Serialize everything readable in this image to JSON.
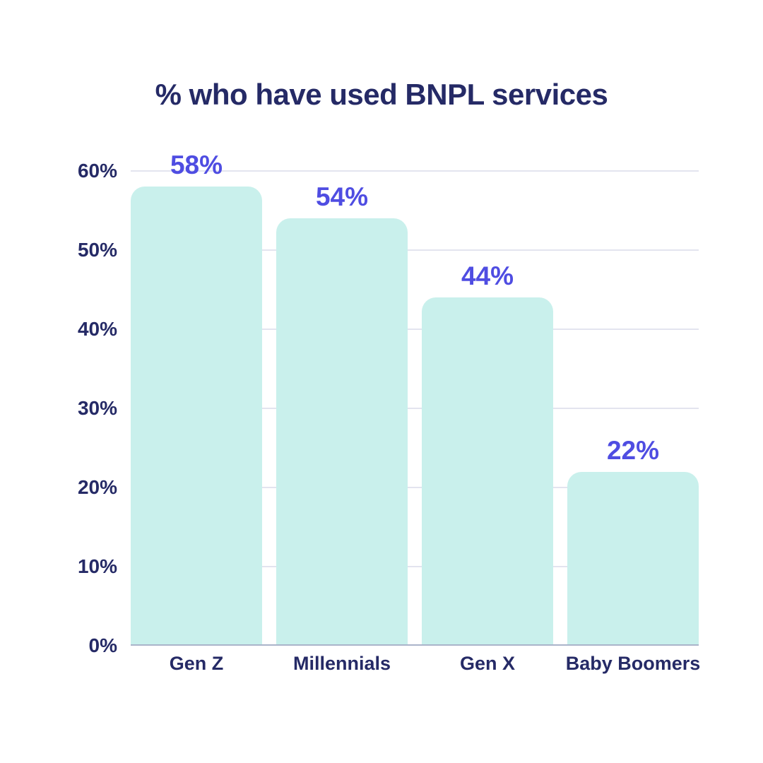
{
  "chart_data": {
    "type": "bar",
    "title": "% who have used BNPL services",
    "categories": [
      "Gen Z",
      "Millennials",
      "Gen X",
      "Baby Boomers"
    ],
    "values": [
      58,
      54,
      44,
      22
    ],
    "value_labels": [
      "58%",
      "54%",
      "44%",
      "22%"
    ],
    "unit": "%",
    "xlabel": "",
    "ylabel": "",
    "ylim": [
      0,
      60
    ],
    "y_ticks": [
      {
        "value": 60,
        "label": "60%"
      },
      {
        "value": 50,
        "label": "50%"
      },
      {
        "value": 40,
        "label": "40%"
      },
      {
        "value": 30,
        "label": "30%"
      },
      {
        "value": 20,
        "label": "20%"
      },
      {
        "value": 10,
        "label": "10%"
      },
      {
        "value": 0,
        "label": "0%"
      }
    ],
    "grid": true,
    "legend": false
  },
  "colors": {
    "background": "#ffffff",
    "title_text": "#252a66",
    "axis_text": "#252a66",
    "value_label_text": "#4f4de2",
    "bar_fill": "#c9f0ec",
    "gridline": "#e3e4ef",
    "axis_line": "#aab4ca"
  }
}
